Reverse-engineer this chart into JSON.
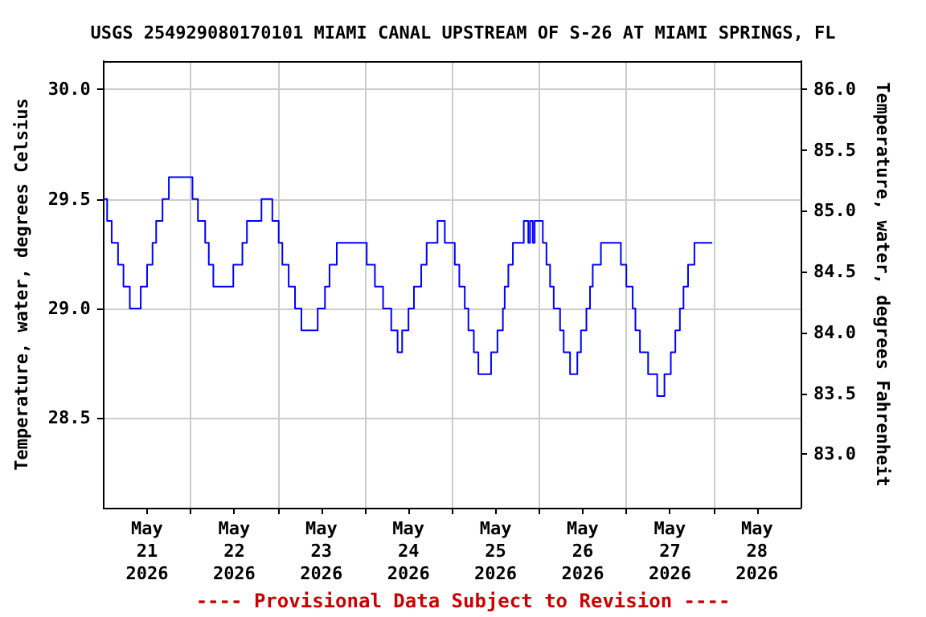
{
  "chart_data": {
    "type": "step",
    "title": "USGS 254929080170101 MIAMI CANAL UPSTREAM OF S-26 AT MIAMI SPRINGS, FL",
    "ylabel": "Temperature, water, degrees Celsius",
    "y2label": "Temperature, water, degrees Fahrenheit",
    "annotations": [
      "---- Provisional Data Subject to Revision ----"
    ],
    "x": [
      "2026-05-21T00:00",
      "2026-05-21T01:00",
      "2026-05-21T02:15",
      "2026-05-21T04:00",
      "2026-05-21T05:30",
      "2026-05-21T07:15",
      "2026-05-21T10:15",
      "2026-05-21T12:00",
      "2026-05-21T13:30",
      "2026-05-21T14:30",
      "2026-05-21T16:15",
      "2026-05-21T18:00",
      "2026-05-22T00:30",
      "2026-05-22T02:00",
      "2026-05-22T04:00",
      "2026-05-22T05:00",
      "2026-05-22T06:15",
      "2026-05-22T11:45",
      "2026-05-22T14:15",
      "2026-05-22T15:30",
      "2026-05-22T19:30",
      "2026-05-22T22:30",
      "2026-05-23T00:15",
      "2026-05-23T01:15",
      "2026-05-23T03:00",
      "2026-05-23T04:45",
      "2026-05-23T06:30",
      "2026-05-23T11:00",
      "2026-05-23T13:00",
      "2026-05-23T14:15",
      "2026-05-23T16:15",
      "2026-05-24T00:30",
      "2026-05-24T02:45",
      "2026-05-24T05:00",
      "2026-05-24T07:15",
      "2026-05-24T09:00",
      "2026-05-24T10:15",
      "2026-05-24T12:00",
      "2026-05-24T13:30",
      "2026-05-24T15:30",
      "2026-05-24T17:00",
      "2026-05-24T20:00",
      "2026-05-24T22:00",
      "2026-05-25T00:45",
      "2026-05-25T02:00",
      "2026-05-25T03:30",
      "2026-05-25T04:30",
      "2026-05-25T06:00",
      "2026-05-25T07:15",
      "2026-05-25T10:45",
      "2026-05-25T12:30",
      "2026-05-25T14:00",
      "2026-05-25T14:30",
      "2026-05-25T15:30",
      "2026-05-25T16:45",
      "2026-05-25T19:45",
      "2026-05-25T21:00",
      "2026-05-25T21:30",
      "2026-05-25T22:15",
      "2026-05-25T22:45",
      "2026-05-26T01:00",
      "2026-05-26T02:00",
      "2026-05-26T03:00",
      "2026-05-26T04:00",
      "2026-05-26T05:45",
      "2026-05-26T06:45",
      "2026-05-26T08:30",
      "2026-05-26T10:30",
      "2026-05-26T11:30",
      "2026-05-26T13:00",
      "2026-05-26T14:00",
      "2026-05-26T14:45",
      "2026-05-26T17:00",
      "2026-05-26T22:30",
      "2026-05-27T00:00",
      "2026-05-27T01:45",
      "2026-05-27T02:30",
      "2026-05-27T03:45",
      "2026-05-27T06:00",
      "2026-05-27T08:30",
      "2026-05-27T10:30",
      "2026-05-27T12:15",
      "2026-05-27T13:30",
      "2026-05-27T14:45",
      "2026-05-27T15:45",
      "2026-05-27T17:00",
      "2026-05-27T18:45",
      "2026-05-27T23:30"
    ],
    "series": [
      {
        "color": "#0000ff",
        "values": [
          29.5,
          29.4,
          29.3,
          29.2,
          29.1,
          29.0,
          29.1,
          29.2,
          29.3,
          29.4,
          29.5,
          29.6,
          29.5,
          29.4,
          29.3,
          29.2,
          29.1,
          29.2,
          29.3,
          29.4,
          29.5,
          29.4,
          29.3,
          29.2,
          29.1,
          29.0,
          28.9,
          29.0,
          29.1,
          29.2,
          29.3,
          29.2,
          29.1,
          29.0,
          28.9,
          28.8,
          28.9,
          29.0,
          29.1,
          29.2,
          29.3,
          29.4,
          29.3,
          29.2,
          29.1,
          29.0,
          28.9,
          28.8,
          28.7,
          28.8,
          28.9,
          29.0,
          29.1,
          29.2,
          29.3,
          29.4,
          29.3,
          29.4,
          29.3,
          29.4,
          29.3,
          29.2,
          29.1,
          29.0,
          28.9,
          28.8,
          28.7,
          28.8,
          28.9,
          29.0,
          29.1,
          29.2,
          29.3,
          29.2,
          29.1,
          29.0,
          28.9,
          28.8,
          28.7,
          28.6,
          28.7,
          28.8,
          28.9,
          29.0,
          29.1,
          29.2,
          29.3,
          29.3
        ]
      }
    ],
    "xlim": [
      "2026-05-21T00:00",
      "2026-05-29T00:00"
    ],
    "xticks": [
      {
        "value": "2026-05-22T00:00",
        "label": null
      },
      {
        "value": "2026-05-23T00:00",
        "label": null
      },
      {
        "value": "2026-05-24T00:00",
        "label": null
      },
      {
        "value": "2026-05-25T00:00",
        "label": null
      },
      {
        "value": "2026-05-26T00:00",
        "label": null
      },
      {
        "value": "2026-05-27T00:00",
        "label": null
      },
      {
        "value": "2026-05-28T00:00",
        "label": null
      },
      {
        "value": "2026-05-21T12:00",
        "label": "May\n21\n2026"
      },
      {
        "value": "2026-05-22T12:00",
        "label": "May\n22\n2026"
      },
      {
        "value": "2026-05-23T12:00",
        "label": "May\n23\n2026"
      },
      {
        "value": "2026-05-24T12:00",
        "label": "May\n24\n2026"
      },
      {
        "value": "2026-05-25T12:00",
        "label": "May\n25\n2026"
      },
      {
        "value": "2026-05-26T12:00",
        "label": "May\n26\n2026"
      },
      {
        "value": "2026-05-27T12:00",
        "label": "May\n27\n2026"
      },
      {
        "value": "2026-05-28T12:00",
        "label": "May\n28\n2026"
      }
    ],
    "ylim": [
      28.09,
      30.13
    ],
    "yticks": [
      {
        "value": 28.5,
        "label": "28.5"
      },
      {
        "value": 29,
        "label": "29.0"
      },
      {
        "value": 29.5,
        "label": "29.5"
      },
      {
        "value": 30,
        "label": "30.0"
      }
    ],
    "y2lim": [
      82.56,
      86.23
    ],
    "y2ticks": [
      {
        "value": 83,
        "label": "83.0"
      },
      {
        "value": 83.5,
        "label": "83.5"
      },
      {
        "value": 84,
        "label": "84.0"
      },
      {
        "value": 84.5,
        "label": "84.5"
      },
      {
        "value": 85,
        "label": "85.0"
      },
      {
        "value": 85.5,
        "label": "85.5"
      },
      {
        "value": 86,
        "label": "86.0"
      }
    ],
    "grid": true,
    "marker": "none",
    "line_style": "solid"
  }
}
